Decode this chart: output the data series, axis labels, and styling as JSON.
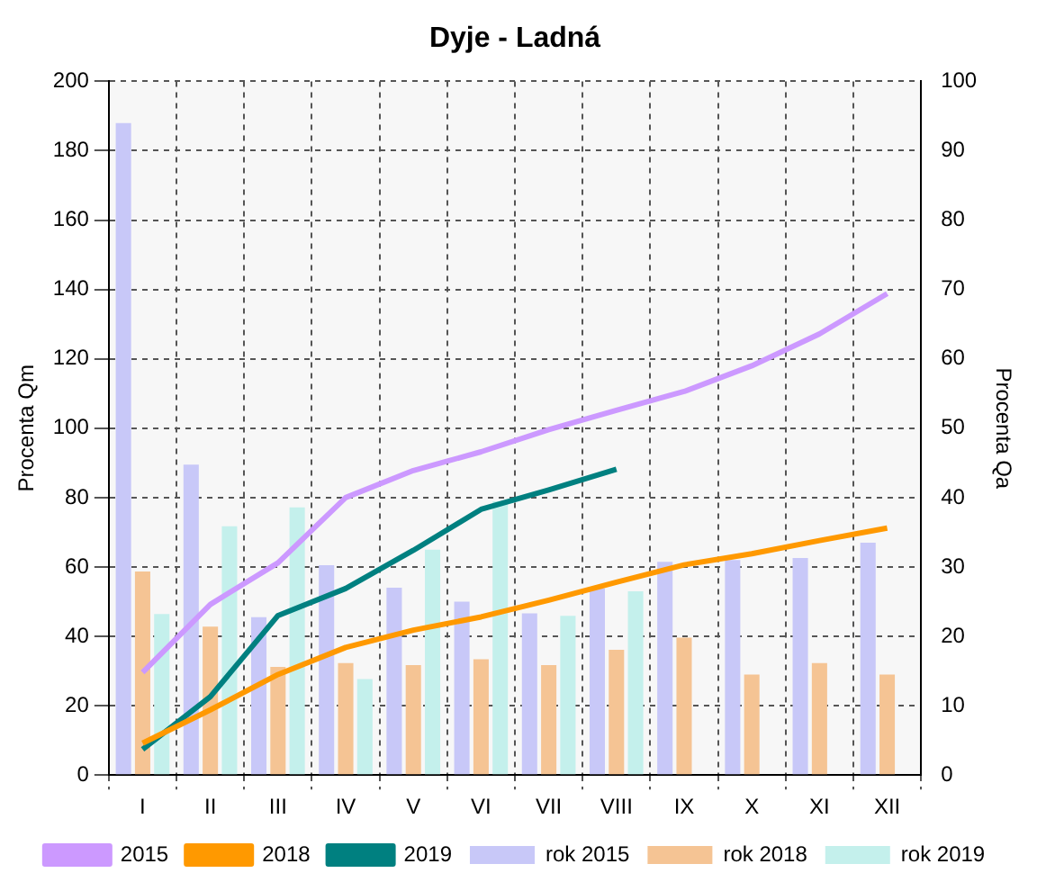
{
  "chart_data": {
    "type": "bar",
    "title": "Dyje - Ladná",
    "ylabel": "Procenta Qm",
    "y2label": "Procenta Qa",
    "categories": [
      "I",
      "II",
      "III",
      "IV",
      "V",
      "VI",
      "VII",
      "VIII",
      "IX",
      "X",
      "XI",
      "XII"
    ],
    "series": [
      {
        "name": "rok 2015",
        "color": "#c8c8f8",
        "values": [
          188,
          89.5,
          45.5,
          60.5,
          54,
          50,
          46.6,
          53.8,
          61.5,
          62,
          62.6,
          67
        ]
      },
      {
        "name": "rok 2018",
        "color": "#f5c494",
        "values": [
          58.7,
          42.8,
          31.2,
          32.3,
          31.7,
          33.4,
          31.7,
          36.1,
          39.6,
          29,
          32.3,
          29
        ]
      },
      {
        "name": "rok 2019",
        "color": "#c4f0ec",
        "values": [
          46.4,
          71.7,
          77.2,
          27.7,
          65,
          78.9,
          45.9,
          53,
          null,
          null,
          null,
          null
        ]
      },
      {
        "name": "2015",
        "type": "line",
        "axis": "y2",
        "color": "#cc99ff",
        "values": [
          14.8,
          24.6,
          30.6,
          40,
          43.9,
          46.6,
          49.8,
          52.6,
          55.3,
          59,
          63.6,
          69.4
        ]
      },
      {
        "name": "2018",
        "type": "line",
        "axis": "y2",
        "color": "#ff9900",
        "values": [
          4.6,
          9.4,
          14.5,
          18.4,
          20.9,
          22.8,
          25.2,
          27.8,
          30.3,
          31.9,
          33.8,
          35.6
        ]
      },
      {
        "name": "2019",
        "type": "line",
        "axis": "y2",
        "color": "#008080",
        "values": [
          3.7,
          11.3,
          23,
          26.9,
          32.4,
          38.3,
          41.1,
          44.1,
          null,
          null,
          null,
          null
        ]
      }
    ],
    "ylim": [
      0,
      200
    ],
    "yticks": [
      0,
      20,
      40,
      60,
      80,
      100,
      120,
      140,
      160,
      180,
      200
    ],
    "y2lim": [
      0,
      100
    ],
    "y2ticks": [
      0,
      10,
      20,
      30,
      40,
      50,
      60,
      70,
      80,
      90,
      100
    ],
    "grid": true,
    "legend": "bottom",
    "marker": "none",
    "line_style": "solid"
  }
}
